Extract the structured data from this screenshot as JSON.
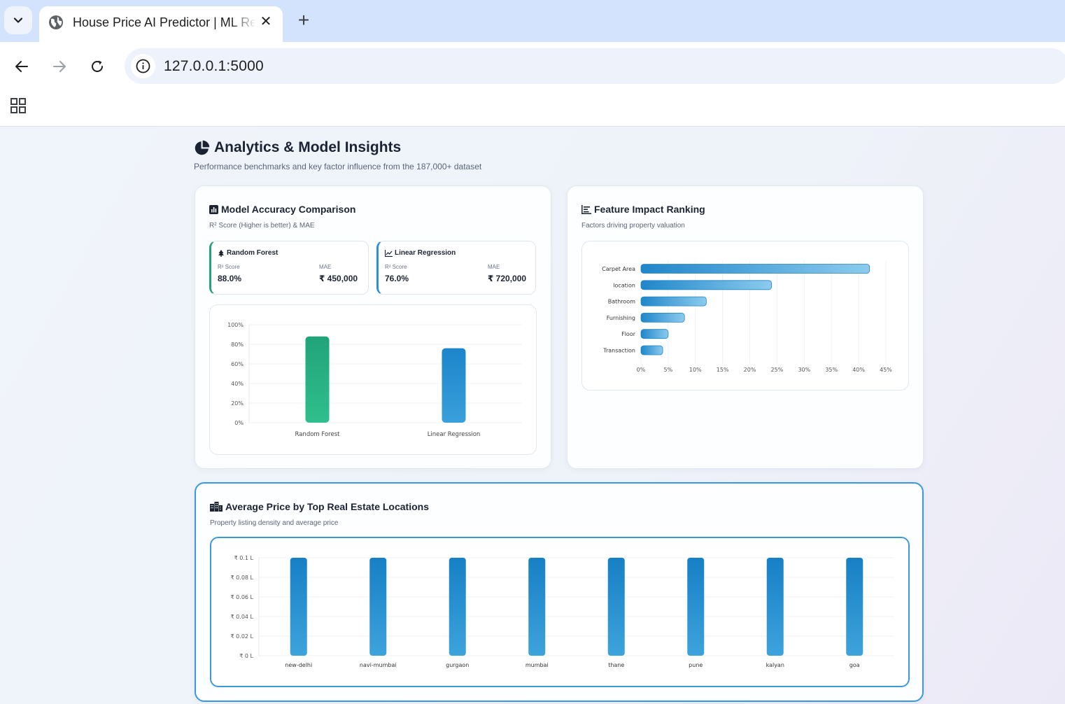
{
  "browser": {
    "tab_title": "House Price AI Predictor | ML Real Estate",
    "tab_close": "✕",
    "new_tab": "+",
    "url": "127.0.0.1:5000"
  },
  "header": {
    "title": "Analytics & Model Insights",
    "subtitle": "Performance benchmarks and key factor influence from the 187,000+ dataset"
  },
  "accuracy_card": {
    "title": "Model Accuracy Comparison",
    "subtitle": "R² Score (Higher is better) & MAE",
    "models": [
      {
        "name": "Random Forest",
        "r2_label": "R² Score",
        "r2": "88.0%",
        "mae_label": "MAE",
        "mae": "₹ 450,000"
      },
      {
        "name": "Linear Regression",
        "r2_label": "R² Score",
        "r2": "76.0%",
        "mae_label": "MAE",
        "mae": "₹ 720,000"
      }
    ]
  },
  "feature_card": {
    "title": "Feature Impact Ranking",
    "subtitle": "Factors driving property valuation"
  },
  "location_card": {
    "title": "Average Price by Top Real Estate Locations",
    "subtitle": "Property listing density and average price"
  },
  "colors": {
    "rf_green": "#1f9e74",
    "lr_blue": "#2a90d2",
    "bar_blue": "#1a83c7",
    "feature_blue": "#2f95d3"
  },
  "chart_data": [
    {
      "type": "bar",
      "categories": [
        "Random Forest",
        "Linear Regression"
      ],
      "values": [
        88,
        76
      ],
      "ylim": [
        0,
        100
      ],
      "yticks": [
        "0%",
        "20%",
        "40%",
        "60%",
        "80%",
        "100%"
      ],
      "grid": true
    },
    {
      "type": "bar",
      "orientation": "horizontal",
      "categories": [
        "Carpet Area",
        "location",
        "Bathroom",
        "Furnishing",
        "Floor",
        "Transaction"
      ],
      "values": [
        42,
        24,
        12,
        8,
        5,
        4
      ],
      "xlim": [
        0,
        45
      ],
      "xticks": [
        "0%",
        "5%",
        "10%",
        "15%",
        "20%",
        "25%",
        "30%",
        "35%",
        "40%",
        "45%"
      ],
      "grid": true
    },
    {
      "type": "bar",
      "categories": [
        "new-delhi",
        "navi-mumbai",
        "gurgaon",
        "mumbai",
        "thane",
        "pune",
        "kalyan",
        "goa"
      ],
      "values": [
        0.1,
        0.1,
        0.1,
        0.1,
        0.1,
        0.1,
        0.1,
        0.1
      ],
      "ylim": [
        0,
        0.1
      ],
      "yticks": [
        "₹ 0 L",
        "₹ 0.02 L",
        "₹ 0.04 L",
        "₹ 0.06 L",
        "₹ 0.08 L",
        "₹ 0.1 L"
      ],
      "grid": true
    }
  ]
}
